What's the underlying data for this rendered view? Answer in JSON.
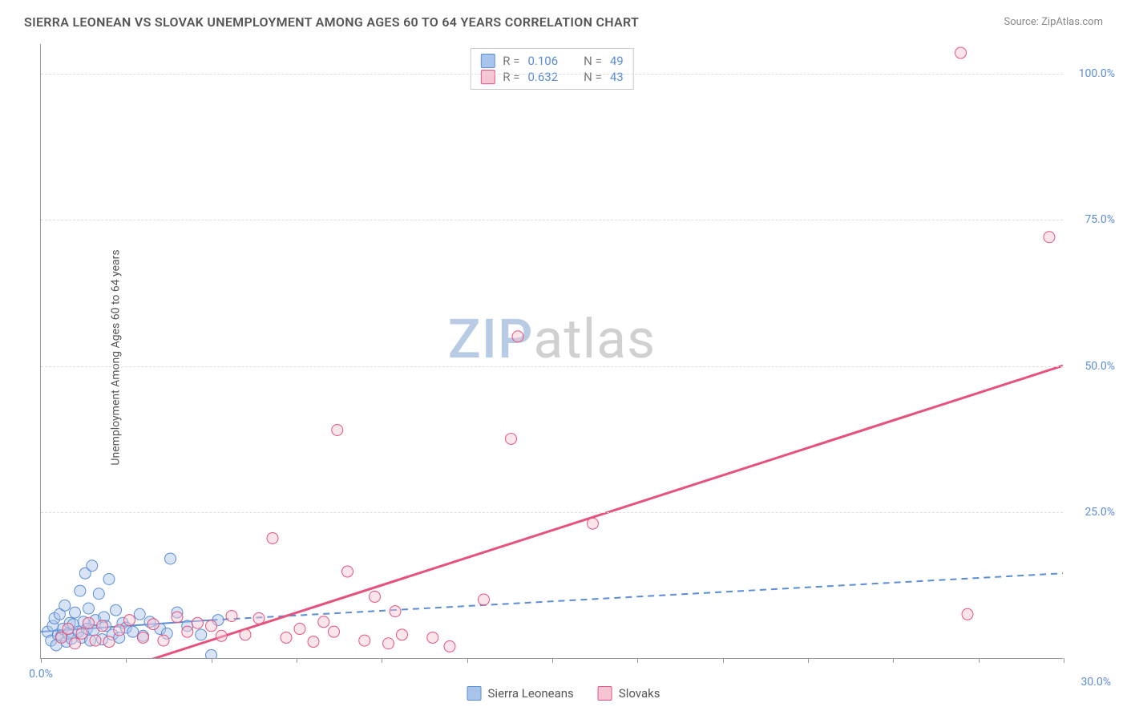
{
  "title": "SIERRA LEONEAN VS SLOVAK UNEMPLOYMENT AMONG AGES 60 TO 64 YEARS CORRELATION CHART",
  "source": "Source: ZipAtlas.com",
  "y_axis_label": "Unemployment Among Ages 60 to 64 years",
  "watermark_zip": "ZIP",
  "watermark_atlas": "atlas",
  "chart": {
    "type": "scatter",
    "xlim": [
      0,
      30
    ],
    "ylim": [
      0,
      105
    ],
    "x_ticks": [
      0,
      2.5,
      5,
      7.5,
      10,
      12.5,
      15,
      17.5,
      20,
      22.5,
      25,
      27.5,
      30
    ],
    "x_tick_labels": {
      "0": "0.0%",
      "30": "30.0%"
    },
    "y_gridlines": [
      25,
      50,
      75,
      100
    ],
    "y_tick_labels": {
      "25": "25.0%",
      "50": "50.0%",
      "75": "75.0%",
      "100": "100.0%"
    },
    "background_color": "#ffffff",
    "grid_color": "#dddddd",
    "marker_radius": 7,
    "marker_stroke_width": 1,
    "marker_fill_opacity": 0.45,
    "series": [
      {
        "name": "Sierra Leoneans",
        "fill": "#a9c4ea",
        "stroke": "#5b8dd6",
        "r": 0.106,
        "n": 49,
        "trend_solid": {
          "x1": 0,
          "y1": 4.5,
          "x2": 5,
          "y2": 6.5
        },
        "trend_dashed": {
          "x1": 5,
          "y1": 6.5,
          "x2": 30,
          "y2": 14.5
        },
        "trend_width": 2,
        "dash_pattern": "8,6",
        "points": [
          {
            "x": 0.2,
            "y": 4.5
          },
          {
            "x": 0.3,
            "y": 3.0
          },
          {
            "x": 0.35,
            "y": 5.5
          },
          {
            "x": 0.4,
            "y": 6.8
          },
          {
            "x": 0.45,
            "y": 2.2
          },
          {
            "x": 0.5,
            "y": 4.0
          },
          {
            "x": 0.55,
            "y": 7.5
          },
          {
            "x": 0.6,
            "y": 3.8
          },
          {
            "x": 0.65,
            "y": 5.0
          },
          {
            "x": 0.7,
            "y": 9.0
          },
          {
            "x": 0.75,
            "y": 2.8
          },
          {
            "x": 0.8,
            "y": 4.2
          },
          {
            "x": 0.85,
            "y": 6.0
          },
          {
            "x": 0.9,
            "y": 3.3
          },
          {
            "x": 0.95,
            "y": 5.8
          },
          {
            "x": 1.0,
            "y": 7.8
          },
          {
            "x": 1.1,
            "y": 4.5
          },
          {
            "x": 1.15,
            "y": 11.5
          },
          {
            "x": 1.2,
            "y": 3.5
          },
          {
            "x": 1.25,
            "y": 6.2
          },
          {
            "x": 1.3,
            "y": 14.5
          },
          {
            "x": 1.35,
            "y": 5.0
          },
          {
            "x": 1.4,
            "y": 8.5
          },
          {
            "x": 1.45,
            "y": 3.0
          },
          {
            "x": 1.5,
            "y": 15.8
          },
          {
            "x": 1.55,
            "y": 4.8
          },
          {
            "x": 1.6,
            "y": 6.5
          },
          {
            "x": 1.7,
            "y": 11.0
          },
          {
            "x": 1.8,
            "y": 3.2
          },
          {
            "x": 1.85,
            "y": 7.0
          },
          {
            "x": 1.9,
            "y": 5.5
          },
          {
            "x": 2.0,
            "y": 13.5
          },
          {
            "x": 2.1,
            "y": 4.0
          },
          {
            "x": 2.2,
            "y": 8.2
          },
          {
            "x": 2.3,
            "y": 3.5
          },
          {
            "x": 2.4,
            "y": 6.0
          },
          {
            "x": 2.5,
            "y": 5.2
          },
          {
            "x": 2.7,
            "y": 4.5
          },
          {
            "x": 2.9,
            "y": 7.5
          },
          {
            "x": 3.0,
            "y": 3.8
          },
          {
            "x": 3.2,
            "y": 6.2
          },
          {
            "x": 3.5,
            "y": 5.0
          },
          {
            "x": 3.7,
            "y": 4.2
          },
          {
            "x": 3.8,
            "y": 17.0
          },
          {
            "x": 4.0,
            "y": 7.8
          },
          {
            "x": 4.3,
            "y": 5.5
          },
          {
            "x": 4.7,
            "y": 4.0
          },
          {
            "x": 5.0,
            "y": 0.5
          },
          {
            "x": 5.2,
            "y": 6.5
          }
        ]
      },
      {
        "name": "Slovaks",
        "fill": "#f5c5d3",
        "stroke": "#e6527c",
        "r": 0.632,
        "n": 43,
        "trend_solid": {
          "x1": 2.3,
          "y1": -2,
          "x2": 30,
          "y2": 50
        },
        "trend_width": 3,
        "points": [
          {
            "x": 0.6,
            "y": 3.5
          },
          {
            "x": 0.8,
            "y": 5.0
          },
          {
            "x": 1.0,
            "y": 2.5
          },
          {
            "x": 1.2,
            "y": 4.2
          },
          {
            "x": 1.4,
            "y": 6.0
          },
          {
            "x": 1.6,
            "y": 3.0
          },
          {
            "x": 1.8,
            "y": 5.5
          },
          {
            "x": 2.0,
            "y": 2.8
          },
          {
            "x": 2.3,
            "y": 4.8
          },
          {
            "x": 2.6,
            "y": 6.5
          },
          {
            "x": 3.0,
            "y": 3.5
          },
          {
            "x": 3.3,
            "y": 5.8
          },
          {
            "x": 3.6,
            "y": 3.0
          },
          {
            "x": 4.0,
            "y": 7.0
          },
          {
            "x": 4.3,
            "y": 4.5
          },
          {
            "x": 4.6,
            "y": 6.0
          },
          {
            "x": 5.0,
            "y": 5.5
          },
          {
            "x": 5.3,
            "y": 3.8
          },
          {
            "x": 5.6,
            "y": 7.2
          },
          {
            "x": 6.0,
            "y": 4.0
          },
          {
            "x": 6.4,
            "y": 6.8
          },
          {
            "x": 6.8,
            "y": 20.5
          },
          {
            "x": 7.2,
            "y": 3.5
          },
          {
            "x": 7.6,
            "y": 5.0
          },
          {
            "x": 8.0,
            "y": 2.8
          },
          {
            "x": 8.3,
            "y": 6.2
          },
          {
            "x": 8.6,
            "y": 4.5
          },
          {
            "x": 8.7,
            "y": 39.0
          },
          {
            "x": 9.0,
            "y": 14.8
          },
          {
            "x": 9.5,
            "y": 3.0
          },
          {
            "x": 9.8,
            "y": 10.5
          },
          {
            "x": 10.2,
            "y": 2.5
          },
          {
            "x": 10.4,
            "y": 8.0
          },
          {
            "x": 10.6,
            "y": 4.0
          },
          {
            "x": 11.5,
            "y": 3.5
          },
          {
            "x": 12.0,
            "y": 2.0
          },
          {
            "x": 13.0,
            "y": 10.0
          },
          {
            "x": 13.8,
            "y": 37.5
          },
          {
            "x": 14.0,
            "y": 55.0
          },
          {
            "x": 16.2,
            "y": 23.0
          },
          {
            "x": 27.0,
            "y": 103.5
          },
          {
            "x": 27.2,
            "y": 7.5
          },
          {
            "x": 29.6,
            "y": 72.0
          }
        ]
      }
    ]
  },
  "legend_top": {
    "r_label": "R =",
    "n_label": "N ="
  },
  "legend_bottom": [
    {
      "label": "Sierra Leoneans",
      "fill": "#a9c4ea",
      "stroke": "#5b8dd6"
    },
    {
      "label": "Slovaks",
      "fill": "#f5c5d3",
      "stroke": "#e6527c"
    }
  ]
}
